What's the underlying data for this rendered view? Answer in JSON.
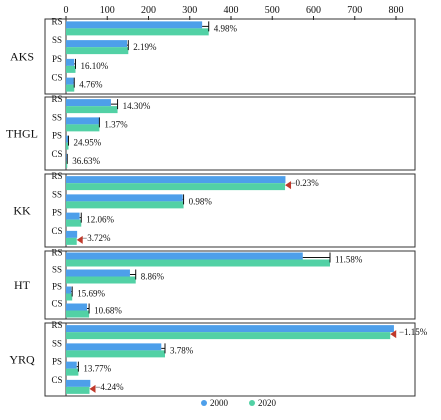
{
  "chart_data": {
    "type": "bar",
    "orientation": "horizontal",
    "x_ticks": [
      0,
      100,
      200,
      300,
      400,
      500,
      600,
      700,
      800
    ],
    "xlim": [
      0,
      860
    ],
    "legend_position": "bottom",
    "series": [
      {
        "name": "2000",
        "color": "#4d9fea"
      },
      {
        "name": "2020",
        "color": "#52d1a5"
      }
    ],
    "groups": [
      {
        "name": "AKS",
        "bars": [
          {
            "category": "RS",
            "v2000": 330,
            "v2020": 346,
            "change": "4.98%"
          },
          {
            "category": "SS",
            "v2000": 148,
            "v2020": 151,
            "change": "2.19%"
          },
          {
            "category": "PS",
            "v2000": 20,
            "v2020": 23,
            "change": "16.10%"
          },
          {
            "category": "CS",
            "v2000": 19,
            "v2020": 20,
            "change": "4.76%"
          }
        ]
      },
      {
        "name": "THGL",
        "bars": [
          {
            "category": "RS",
            "v2000": 109,
            "v2020": 125,
            "change": "14.30%"
          },
          {
            "category": "SS",
            "v2000": 80,
            "v2020": 81,
            "change": "1.37%"
          },
          {
            "category": "PS",
            "v2000": 5,
            "v2020": 6,
            "change": "24.95%"
          },
          {
            "category": "CS",
            "v2000": 2,
            "v2020": 3,
            "change": "36.63%"
          }
        ]
      },
      {
        "name": "KK",
        "bars": [
          {
            "category": "RS",
            "v2000": 532,
            "v2020": 531,
            "change": "−0.23%"
          },
          {
            "category": "SS",
            "v2000": 283,
            "v2020": 285,
            "change": "0.98%"
          },
          {
            "category": "PS",
            "v2000": 33,
            "v2020": 37,
            "change": "12.06%"
          },
          {
            "category": "CS",
            "v2000": 27,
            "v2020": 26,
            "change": "−3.72%"
          }
        ]
      },
      {
        "name": "HT",
        "bars": [
          {
            "category": "RS",
            "v2000": 574,
            "v2020": 640,
            "change": "11.58%"
          },
          {
            "category": "SS",
            "v2000": 155,
            "v2020": 169,
            "change": "8.86%"
          },
          {
            "category": "PS",
            "v2000": 13,
            "v2020": 15,
            "change": "15.69%"
          },
          {
            "category": "CS",
            "v2000": 51,
            "v2020": 56,
            "change": "10.68%"
          }
        ]
      },
      {
        "name": "YRQ",
        "bars": [
          {
            "category": "RS",
            "v2000": 795,
            "v2020": 786,
            "change": "−1.15%"
          },
          {
            "category": "SS",
            "v2000": 231,
            "v2020": 240,
            "change": "3.78%"
          },
          {
            "category": "PS",
            "v2000": 26,
            "v2020": 30,
            "change": "13.77%"
          },
          {
            "category": "CS",
            "v2000": 59,
            "v2020": 57,
            "change": "−4.24%"
          }
        ]
      }
    ],
    "increase_marker_color": "#111111",
    "decrease_marker_color": "#c0392b"
  }
}
